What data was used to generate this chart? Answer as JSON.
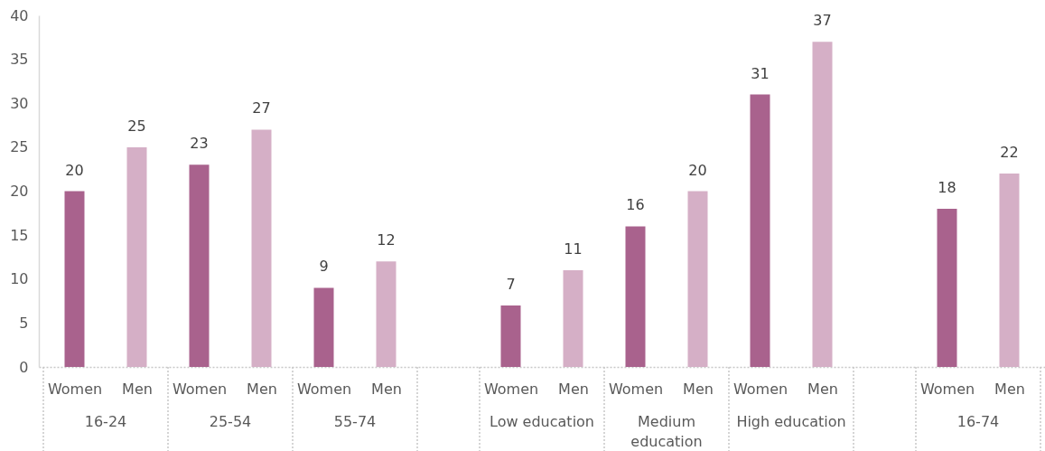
{
  "chart_data": {
    "type": "bar",
    "categories": [
      "Women",
      "Men",
      "Women",
      "Men",
      "Women",
      "Men",
      null,
      "Women",
      "Men",
      "Women",
      "Men",
      "Women",
      "Men",
      null,
      "Women",
      "Men"
    ],
    "values": [
      20,
      25,
      23,
      27,
      9,
      12,
      null,
      7,
      11,
      16,
      20,
      31,
      37,
      null,
      18,
      22
    ],
    "colors": [
      "#a9628d",
      "#d5afc6",
      "#a9628d",
      "#d5afc6",
      "#a9628d",
      "#d5afc6",
      null,
      "#a9628d",
      "#d5afc6",
      "#a9628d",
      "#d5afc6",
      "#a9628d",
      "#d5afc6",
      null,
      "#a9628d",
      "#d5afc6"
    ],
    "ylim": [
      0,
      40
    ],
    "yticks": [
      0,
      5,
      10,
      15,
      20,
      25,
      30,
      35,
      40
    ],
    "data_labels": true,
    "annotations": [
      "16-24",
      "25-54",
      "55-74",
      "Low education",
      "Medium\neducation",
      "High education",
      "16-74"
    ]
  }
}
